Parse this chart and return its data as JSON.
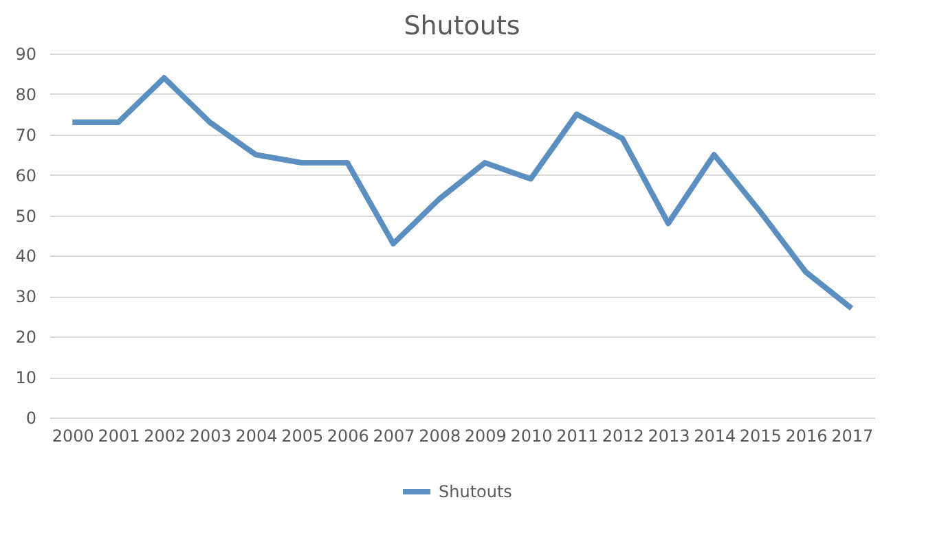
{
  "chart_data": {
    "type": "line",
    "title": "Shutouts",
    "categories": [
      "2000",
      "2001",
      "2002",
      "2003",
      "2004",
      "2005",
      "2006",
      "2007",
      "2008",
      "2009",
      "2010",
      "2011",
      "2012",
      "2013",
      "2014",
      "2015",
      "2016",
      "2017"
    ],
    "series": [
      {
        "name": "Shutouts",
        "color": "#5b8fc0",
        "values": [
          73,
          73,
          84,
          73,
          65,
          63,
          63,
          43,
          54,
          63,
          59,
          75,
          69,
          48,
          65,
          51,
          36,
          27
        ]
      }
    ],
    "ylim": [
      0,
      90
    ],
    "yticks": [
      0,
      10,
      20,
      30,
      40,
      50,
      60,
      70,
      80,
      90
    ],
    "grid": "y",
    "legend": "bottom",
    "marker": "none",
    "line_style": "solid"
  }
}
